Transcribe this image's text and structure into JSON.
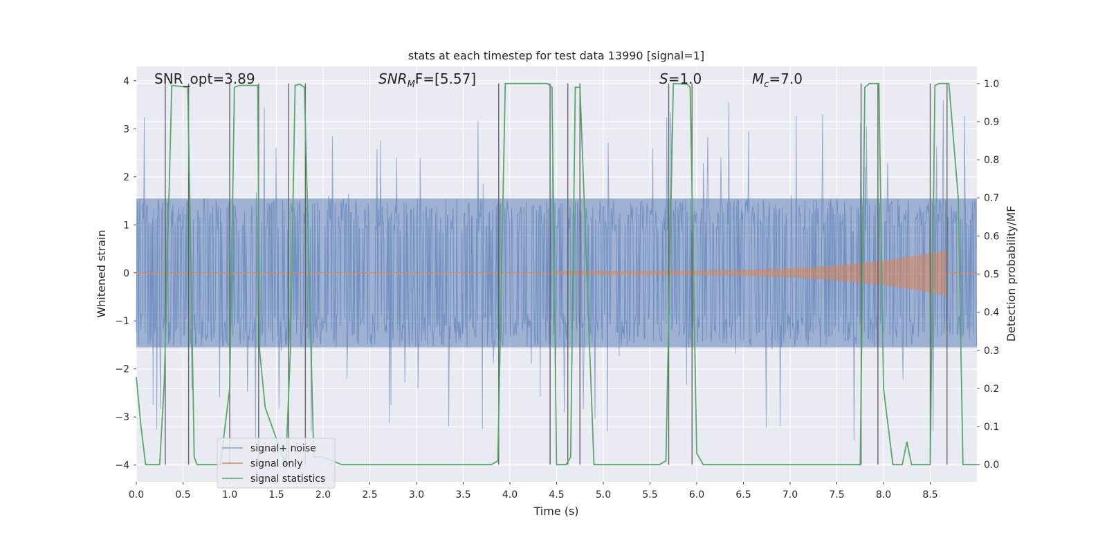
{
  "chart_data": {
    "type": "line",
    "title": "stats at each timestep for test data 13990 [signal=1]",
    "xlabel": "Time (s)",
    "ylabel": "Whitened strain",
    "ylabel_right": "Detection probability/MF",
    "xlim": [
      0.0,
      9.0
    ],
    "ylim": [
      -4.35,
      4.3
    ],
    "ylim_right": [
      -0.045,
      1.045
    ],
    "xticks": [
      0.0,
      0.5,
      1.0,
      1.5,
      2.0,
      2.5,
      3.0,
      3.5,
      4.0,
      4.5,
      5.0,
      5.5,
      6.0,
      6.5,
      7.0,
      7.5,
      8.0,
      8.5
    ],
    "xtick_labels": [
      "0.0",
      "0.5",
      "1.0",
      "1.5",
      "2.0",
      "2.5",
      "3.0",
      "3.5",
      "4.0",
      "4.5",
      "5.0",
      "5.5",
      "6.0",
      "6.5",
      "7.0",
      "7.5",
      "8.0",
      "8.5"
    ],
    "yticks": [
      -4,
      -3,
      -2,
      -1,
      0,
      1,
      2,
      3,
      4
    ],
    "ytick_labels": [
      "−4",
      "−3",
      "−2",
      "−1",
      "0",
      "1",
      "2",
      "3",
      "4"
    ],
    "yticks_right": [
      0.0,
      0.1,
      0.2,
      0.3,
      0.4,
      0.5,
      0.6,
      0.7,
      0.8,
      0.9,
      1.0
    ],
    "ytick_right_labels": [
      "0.0",
      "0.1",
      "0.2",
      "0.3",
      "0.4",
      "0.5",
      "0.6",
      "0.7",
      "0.8",
      "0.9",
      "1.0"
    ],
    "annotations": [
      {
        "text": "SNR_opt=3.89",
        "x": 0.2,
        "y": 4.0
      },
      {
        "text": "SNR",
        "sub": "M",
        "tail": "F=[5.57]",
        "x": 2.6,
        "y": 4.0,
        "italic": true
      },
      {
        "text": "S",
        "tail": "=1.0",
        "x": 5.6,
        "y": 4.0,
        "italic": true
      },
      {
        "text": "M",
        "sub": "c",
        "tail": "=7.0",
        "x": 6.6,
        "y": 4.0,
        "italic": true
      }
    ],
    "legend": {
      "position": "lower-left",
      "entries": [
        {
          "label": "signal+ noise",
          "color": "#8c9fcb"
        },
        {
          "label": "signal only",
          "color": "#dd8452"
        },
        {
          "label": "signal statistics",
          "color": "#55a868"
        }
      ]
    },
    "noise": {
      "name": "signal+ noise",
      "t_start": 0.0,
      "t_end": 9.0,
      "samples": 1150,
      "core_amplitude": 1.55,
      "spike_amplitude": 3.6,
      "seed": 13990,
      "color": "#4c72b0"
    },
    "signal": {
      "name": "signal only",
      "t_start": 4.5,
      "t_merger": 8.68,
      "amp_start": 0.04,
      "amp_peak": 0.48,
      "color": "#dd8452"
    },
    "statistics": {
      "name": "signal statistics",
      "color": "#55a868",
      "t": [
        0.0,
        0.05,
        0.1,
        0.25,
        0.3,
        0.38,
        0.55,
        0.58,
        0.62,
        0.65,
        0.7,
        0.9,
        1.0,
        1.05,
        1.1,
        1.3,
        1.32,
        1.38,
        1.6,
        1.65,
        1.7,
        1.75,
        1.8,
        1.9,
        2.0,
        2.1,
        2.2,
        3.0,
        3.8,
        3.87,
        3.95,
        4.4,
        4.45,
        4.5,
        4.6,
        4.65,
        4.7,
        4.75,
        4.9,
        5.0,
        5.6,
        5.67,
        5.75,
        5.9,
        5.93,
        6.0,
        6.07,
        6.2,
        7.5,
        7.75,
        7.8,
        7.85,
        7.95,
        8.0,
        8.1,
        8.2,
        8.25,
        8.3,
        8.4,
        8.5,
        8.55,
        8.6,
        8.7,
        8.8,
        8.85,
        9.0
      ],
      "v": [
        0.23,
        0.1,
        0.0,
        0.0,
        0.22,
        0.995,
        0.99,
        0.6,
        0.02,
        0.0,
        0.0,
        0.0,
        0.2,
        0.99,
        0.995,
        0.995,
        0.3,
        0.15,
        0.0,
        0.3,
        0.995,
        0.998,
        0.99,
        0.02,
        0.02,
        0.01,
        0.0,
        0.0,
        0.0,
        0.01,
        1.0,
        1.0,
        0.99,
        0.0,
        0.0,
        0.02,
        0.99,
        0.99,
        0.0,
        0.0,
        0.0,
        0.01,
        1.0,
        0.998,
        0.99,
        0.03,
        0.0,
        0.0,
        0.0,
        0.0,
        0.99,
        1.0,
        1.0,
        0.2,
        0.0,
        0.0,
        0.06,
        0.0,
        0.0,
        0.0,
        0.995,
        1.0,
        1.0,
        0.7,
        0.0,
        0.0
      ]
    },
    "vlines": {
      "color": "#555555",
      "x": [
        0.31,
        0.56,
        1.0,
        1.31,
        1.63,
        1.81,
        3.88,
        4.43,
        4.62,
        4.75,
        5.7,
        5.95,
        7.76,
        7.94,
        8.5,
        8.68
      ]
    }
  }
}
